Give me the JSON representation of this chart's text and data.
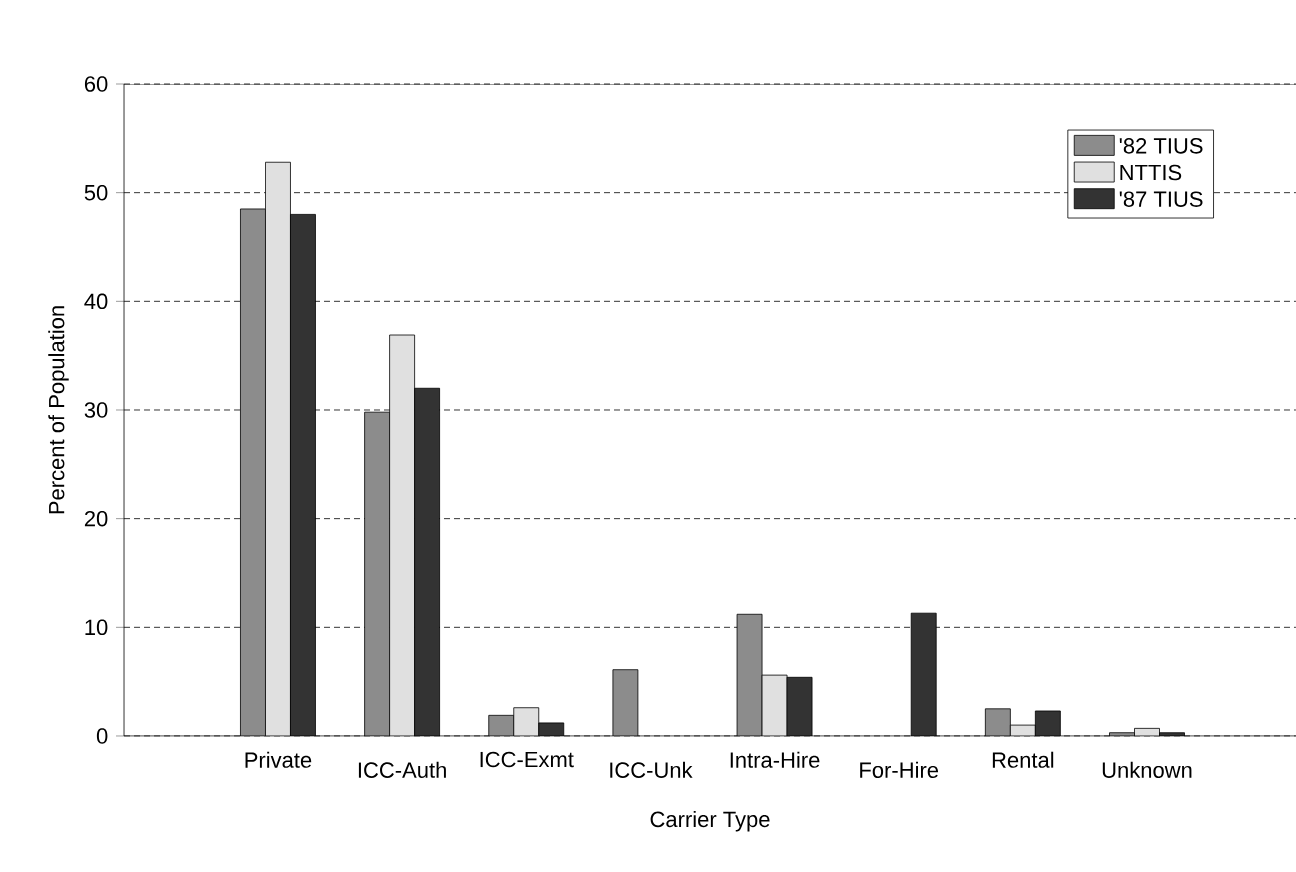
{
  "chart_data": {
    "type": "bar",
    "xlabel": "Carrier Type",
    "ylabel": "Percent of Population",
    "categories": [
      "Private",
      "ICC-Auth",
      "ICC-Exmt",
      "ICC-Unk",
      "Intra-Hire",
      "For-Hire",
      "Rental",
      "Unknown"
    ],
    "series": [
      {
        "name": "'82 TIUS",
        "color": "#8c8c8c",
        "values": [
          48.5,
          29.8,
          1.9,
          6.1,
          11.2,
          null,
          2.5,
          0.3
        ]
      },
      {
        "name": "NTTIS",
        "color": "#e0e0e0",
        "values": [
          52.8,
          36.9,
          2.6,
          null,
          5.6,
          null,
          1.0,
          0.7
        ]
      },
      {
        "name": "'87 TIUS",
        "color": "#333333",
        "values": [
          48.0,
          32.0,
          1.2,
          null,
          5.4,
          11.3,
          2.3,
          0.3
        ]
      }
    ],
    "ylim": [
      0,
      60
    ],
    "yticks": [
      0,
      10,
      20,
      30,
      40,
      50,
      60
    ],
    "grid": "y",
    "legend": "top right"
  }
}
